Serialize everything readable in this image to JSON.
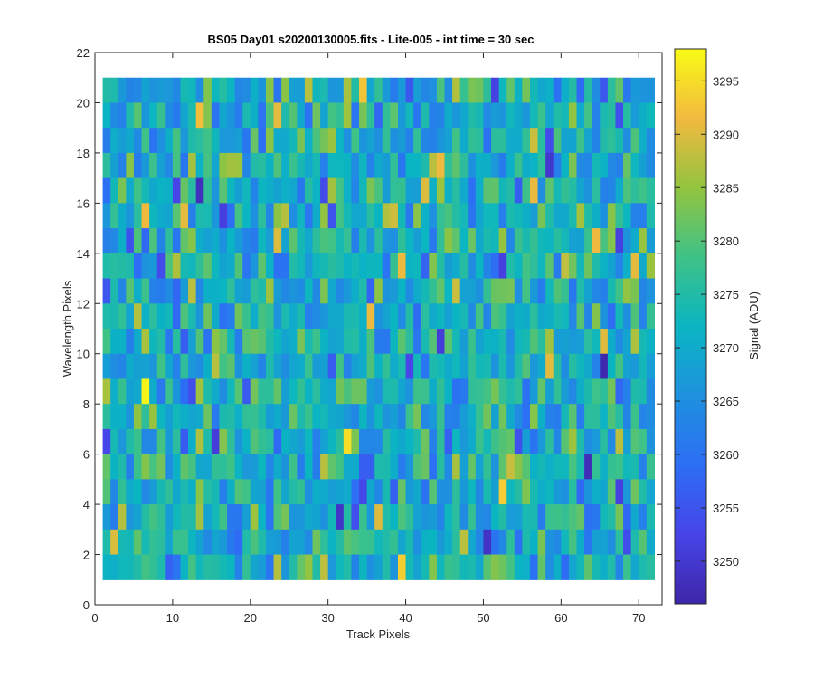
{
  "chart_data": {
    "type": "heatmap",
    "title": "BS05 Day01  s20200130005.fits - Lite-005 - int time = 30 sec",
    "xlabel": "Track Pixels",
    "ylabel": "Wavelength Pixels",
    "xlim": [
      0,
      73
    ],
    "ylim": [
      0,
      22
    ],
    "xticks": [
      0,
      10,
      20,
      30,
      40,
      50,
      60,
      70
    ],
    "yticks": [
      0,
      2,
      4,
      6,
      8,
      10,
      12,
      14,
      16,
      18,
      20,
      22
    ],
    "grid": "extent x 1 to 72, y 1 to 21",
    "x_range": [
      1,
      72
    ],
    "y_range": [
      1,
      21
    ],
    "colormap": "parula",
    "colorbar": {
      "label": "Signal (ADU)",
      "range": [
        3246,
        3298
      ],
      "ticks": [
        3250,
        3255,
        3260,
        3265,
        3270,
        3275,
        3280,
        3285,
        3290,
        3295
      ]
    },
    "data_summary": "Approximately 72 x 21 cells of signal values mostly near 3265-3285 ADU with scattered highs near 3297 and lows near 3247; per-cell values not individually legible and are rendered procedurally around this distribution."
  }
}
